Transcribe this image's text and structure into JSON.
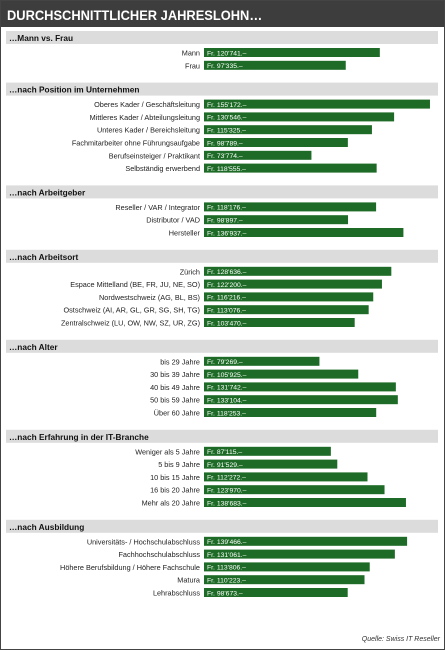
{
  "chart_data": {
    "type": "bar",
    "title": "DURCHSCHNITTLICHER JAHRESLOHN…",
    "source": "Quelle: Swiss IT Reseller",
    "colors": {
      "title_bg": "#3d3d3d",
      "section_band": "#dcdcdc",
      "bar": "#1d6b26",
      "bar_text": "#ffffff",
      "frame": "#444444"
    },
    "value_prefix": "Fr.",
    "value_suffix": ".–",
    "xlim": [
      0,
      160000
    ],
    "groups": [
      {
        "heading": "…Mann vs. Frau",
        "items": [
          {
            "label": "Mann",
            "value": 120741
          },
          {
            "label": "Frau",
            "value": 97335
          }
        ]
      },
      {
        "heading": "…nach Position im Unternehmen",
        "items": [
          {
            "label": "Oberes Kader / Geschäftsleitung",
            "value": 155172
          },
          {
            "label": "Mittleres Kader / Abteilungsleitung",
            "value": 130546
          },
          {
            "label": "Unteres Kader / Bereichsleitung",
            "value": 115325
          },
          {
            "label": "Fachmitarbeiter ohne Führungsaufgabe",
            "value": 98789
          },
          {
            "label": "Berufseinsteiger / Praktikant",
            "value": 73774
          },
          {
            "label": "Selbständig erwerbend",
            "value": 118555
          }
        ]
      },
      {
        "heading": "…nach Arbeitgeber",
        "items": [
          {
            "label": "Reseller / VAR / Integrator",
            "value": 118176
          },
          {
            "label": "Distributor / VAD",
            "value": 98897
          },
          {
            "label": "Hersteller",
            "value": 136937
          }
        ]
      },
      {
        "heading": "…nach Arbeitsort",
        "items": [
          {
            "label": "Zürich",
            "value": 128636
          },
          {
            "label": "Espace Mittelland (BE, FR, JU, NE, SO)",
            "value": 122200
          },
          {
            "label": "Nordwestschweiz (AG, BL, BS)",
            "value": 116216
          },
          {
            "label": "Ostschweiz (AI, AR, GL, GR, SG, SH, TG)",
            "value": 113076
          },
          {
            "label": "Zentralschweiz (LU, OW, NW, SZ, UR, ZG)",
            "value": 103470
          }
        ]
      },
      {
        "heading": "…nach Alter",
        "items": [
          {
            "label": "bis 29 Jahre",
            "value": 79269
          },
          {
            "label": "30 bis 39 Jahre",
            "value": 105925
          },
          {
            "label": "40 bis 49 Jahre",
            "value": 131742
          },
          {
            "label": "50 bis 59 Jahre",
            "value": 133104
          },
          {
            "label": "Über 60 Jahre",
            "value": 118253
          }
        ]
      },
      {
        "heading": "…nach Erfahrung in der IT-Branche",
        "items": [
          {
            "label": "Weniger als 5 Jahre",
            "value": 87115
          },
          {
            "label": "5 bis 9 Jahre",
            "value": 91529
          },
          {
            "label": "10 bis 15 Jahre",
            "value": 112272
          },
          {
            "label": "16 bis 20 Jahre",
            "value": 123970
          },
          {
            "label": "Mehr als 20 Jahre",
            "value": 138683
          }
        ]
      },
      {
        "heading": "…nach Ausbildung",
        "items": [
          {
            "label": "Universitäts- / Hochschulabschluss",
            "value": 139466
          },
          {
            "label": "Fachhochschulabschluss",
            "value": 131061
          },
          {
            "label": "Höhere Berufsbildung / Höhere Fachschule",
            "value": 113806
          },
          {
            "label": "Matura",
            "value": 110223
          },
          {
            "label": "Lehrabschluss",
            "value": 98673
          }
        ]
      }
    ]
  }
}
